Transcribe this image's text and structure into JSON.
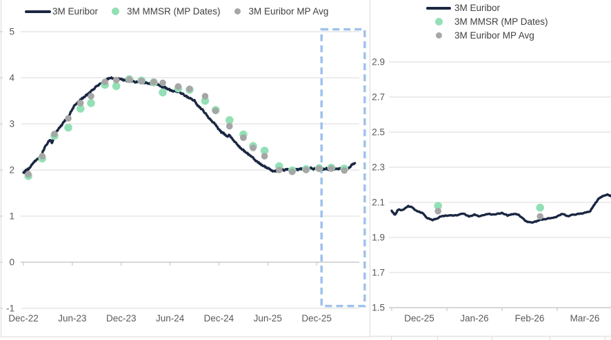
{
  "colors": {
    "euribor_line": "#1a2742",
    "mmsr_dot": "#93e0b6",
    "mp_avg_dot": "#a6a6a6",
    "gridline": "#d9d9d9",
    "axis_line": "#bfbfbf",
    "tick_label_text": "#595959",
    "legend_text": "#404040",
    "zoom_box": "#9fc2ec",
    "chart_border": "#d9d9d9"
  },
  "chart_data": [
    {
      "id": "left-chart",
      "type": "line",
      "title": "",
      "legend": [
        {
          "label": "3M Euribor",
          "marker": "line"
        },
        {
          "label": "3M MMSR (MP Dates)",
          "marker": "dot-green"
        },
        {
          "label": "3M Euribor MP Avg",
          "marker": "dot-gray"
        }
      ],
      "x_unit": "months since Dec-2022",
      "ylim": [
        -1,
        5
      ],
      "x_axis_at": 0,
      "y_gridlines": [
        5,
        4,
        3,
        2,
        1,
        -1
      ],
      "y_ticks": [
        {
          "label": "5",
          "value": 5
        },
        {
          "label": "4",
          "value": 4
        },
        {
          "label": "3",
          "value": 3
        },
        {
          "label": "2",
          "value": 2
        },
        {
          "label": "1",
          "value": 1
        },
        {
          "label": "0",
          "value": 0
        },
        {
          "label": "-1",
          "value": -1
        }
      ],
      "x_ticks": [
        {
          "label": "Dec-22",
          "month": 0
        },
        {
          "label": "Jun-23",
          "month": 6
        },
        {
          "label": "Dec-23",
          "month": 12
        },
        {
          "label": "Jun-24",
          "month": 18
        },
        {
          "label": "Dec-24",
          "month": 24
        },
        {
          "label": "Jun-25",
          "month": 30
        },
        {
          "label": "Dec-25",
          "month": 36
        }
      ],
      "x_axis_tick_months": [
        0,
        6,
        12,
        18,
        24,
        30,
        36
      ],
      "zoom_box": {
        "x_months": [
          36.6,
          41.9
        ],
        "y_values": [
          -0.95,
          5.05
        ]
      },
      "series": [
        {
          "name": "3M Euribor",
          "type": "line",
          "points": [
            [
              0,
              1.93
            ],
            [
              0.3,
              2.0
            ],
            [
              0.6,
              2.02
            ],
            [
              1,
              2.1
            ],
            [
              1.4,
              2.2
            ],
            [
              1.8,
              2.24
            ],
            [
              2.2,
              2.32
            ],
            [
              2.6,
              2.48
            ],
            [
              3,
              2.6
            ],
            [
              3.3,
              2.66
            ],
            [
              3.5,
              2.58
            ],
            [
              3.8,
              2.75
            ],
            [
              4.2,
              2.87
            ],
            [
              4.6,
              2.95
            ],
            [
              5,
              3.05
            ],
            [
              5.4,
              3.12
            ],
            [
              5.8,
              3.25
            ],
            [
              6.2,
              3.38
            ],
            [
              6.6,
              3.45
            ],
            [
              7,
              3.52
            ],
            [
              7.4,
              3.58
            ],
            [
              7.8,
              3.63
            ],
            [
              8.2,
              3.7
            ],
            [
              8.6,
              3.75
            ],
            [
              9,
              3.82
            ],
            [
              9.4,
              3.86
            ],
            [
              9.8,
              3.92
            ],
            [
              10.2,
              3.96
            ],
            [
              10.6,
              4.0
            ],
            [
              11,
              3.98
            ],
            [
              11.4,
              3.96
            ],
            [
              11.8,
              3.98
            ],
            [
              12.2,
              3.95
            ],
            [
              12.6,
              3.94
            ],
            [
              13,
              3.92
            ],
            [
              13.4,
              3.93
            ],
            [
              13.8,
              3.9
            ],
            [
              14.2,
              3.91
            ],
            [
              14.6,
              3.88
            ],
            [
              15,
              3.9
            ],
            [
              15.4,
              3.88
            ],
            [
              15.8,
              3.86
            ],
            [
              16.2,
              3.87
            ],
            [
              16.6,
              3.84
            ],
            [
              17,
              3.81
            ],
            [
              17.4,
              3.79
            ],
            [
              17.8,
              3.75
            ],
            [
              18.2,
              3.72
            ],
            [
              18.6,
              3.71
            ],
            [
              19,
              3.7
            ],
            [
              19.4,
              3.66
            ],
            [
              19.8,
              3.62
            ],
            [
              20.2,
              3.58
            ],
            [
              20.6,
              3.54
            ],
            [
              21,
              3.5
            ],
            [
              21.3,
              3.42
            ],
            [
              21.6,
              3.36
            ],
            [
              22,
              3.3
            ],
            [
              22.4,
              3.22
            ],
            [
              22.8,
              3.12
            ],
            [
              23.2,
              3.05
            ],
            [
              23.6,
              2.98
            ],
            [
              24,
              2.88
            ],
            [
              24.3,
              2.82
            ],
            [
              24.6,
              2.79
            ],
            [
              25,
              2.73
            ],
            [
              25.3,
              2.76
            ],
            [
              25.6,
              2.68
            ],
            [
              26,
              2.6
            ],
            [
              26.4,
              2.52
            ],
            [
              26.8,
              2.46
            ],
            [
              27.2,
              2.4
            ],
            [
              27.6,
              2.34
            ],
            [
              28,
              2.3
            ],
            [
              28.4,
              2.22
            ],
            [
              28.8,
              2.16
            ],
            [
              29.2,
              2.12
            ],
            [
              29.6,
              2.08
            ],
            [
              30,
              2.04
            ],
            [
              30.4,
              2.0
            ],
            [
              30.8,
              1.97
            ],
            [
              31.2,
              1.99
            ],
            [
              31.6,
              2.01
            ],
            [
              32,
              2.0
            ],
            [
              32.4,
              2.02
            ],
            [
              32.8,
              2.01
            ],
            [
              33.2,
              2.02
            ],
            [
              33.6,
              2.01
            ],
            [
              34,
              2.02
            ],
            [
              34.4,
              2.03
            ],
            [
              34.8,
              2.02
            ],
            [
              35.2,
              2.05
            ],
            [
              35.6,
              2.02
            ],
            [
              36,
              2.03
            ],
            [
              36.4,
              2.04
            ],
            [
              36.8,
              2.02
            ],
            [
              37.2,
              2.03
            ],
            [
              37.6,
              2.0
            ],
            [
              38,
              2.03
            ],
            [
              38.4,
              2.02
            ],
            [
              38.8,
              2.03
            ],
            [
              39.2,
              2.02
            ],
            [
              39.6,
              2.0
            ],
            [
              40,
              2.05
            ],
            [
              40.4,
              2.12
            ],
            [
              40.7,
              2.15
            ]
          ]
        },
        {
          "name": "3M MMSR (MP Dates)",
          "type": "scatter",
          "color": "green",
          "points": [
            [
              0.6,
              1.87
            ],
            [
              2.3,
              2.25
            ],
            [
              3.8,
              2.74
            ],
            [
              5.5,
              2.92
            ],
            [
              7.0,
              3.33
            ],
            [
              8.3,
              3.45
            ],
            [
              10.0,
              3.85
            ],
            [
              11.4,
              3.82
            ],
            [
              13.0,
              3.97
            ],
            [
              14.5,
              3.94
            ],
            [
              16.0,
              3.9
            ],
            [
              17.1,
              3.68
            ],
            [
              19.0,
              3.77
            ],
            [
              20.4,
              3.74
            ],
            [
              22.3,
              3.5
            ],
            [
              23.6,
              3.3
            ],
            [
              25.3,
              3.08
            ],
            [
              27.0,
              2.77
            ],
            [
              28.2,
              2.52
            ],
            [
              29.6,
              2.42
            ],
            [
              31.4,
              2.08
            ],
            [
              33.0,
              1.99
            ],
            [
              34.7,
              2.02
            ],
            [
              36.3,
              2.04
            ],
            [
              37.8,
              2.05
            ],
            [
              39.4,
              2.03
            ]
          ]
        },
        {
          "name": "3M Euribor MP Avg",
          "type": "scatter",
          "color": "gray",
          "points": [
            [
              0.6,
              1.91
            ],
            [
              2.3,
              2.3
            ],
            [
              3.8,
              2.78
            ],
            [
              5.5,
              3.12
            ],
            [
              7.0,
              3.45
            ],
            [
              8.3,
              3.6
            ],
            [
              10.0,
              3.91
            ],
            [
              11.4,
              3.95
            ],
            [
              13.0,
              3.96
            ],
            [
              14.5,
              3.93
            ],
            [
              16.0,
              3.91
            ],
            [
              17.1,
              3.89
            ],
            [
              19.0,
              3.81
            ],
            [
              20.4,
              3.76
            ],
            [
              22.3,
              3.6
            ],
            [
              23.6,
              3.28
            ],
            [
              25.3,
              2.95
            ],
            [
              27.0,
              2.7
            ],
            [
              28.2,
              2.48
            ],
            [
              29.6,
              2.3
            ],
            [
              31.4,
              2.0
            ],
            [
              33.0,
              1.96
            ],
            [
              34.7,
              2.0
            ],
            [
              36.3,
              2.03
            ],
            [
              37.8,
              2.03
            ],
            [
              39.4,
              1.99
            ]
          ]
        }
      ]
    },
    {
      "id": "right-chart",
      "type": "line",
      "title": "",
      "legend": [
        {
          "label": "3M Euribor",
          "marker": "line"
        },
        {
          "label": "3M MMSR (MP Dates)",
          "marker": "dot-green"
        },
        {
          "label": "3M Euribor MP Avg",
          "marker": "dot-gray"
        }
      ],
      "x_unit": "months since Dec-2025",
      "ylim": [
        1.5,
        2.9
      ],
      "x_axis_at": 1.5,
      "y_gridlines": [
        2.9,
        2.7,
        2.5,
        2.3,
        2.1,
        1.9,
        1.7
      ],
      "y_ticks": [
        {
          "label": "2.9",
          "value": 2.9
        },
        {
          "label": "2.7",
          "value": 2.7
        },
        {
          "label": "2.5",
          "value": 2.5
        },
        {
          "label": "2.3",
          "value": 2.3
        },
        {
          "label": "2.1",
          "value": 2.1
        },
        {
          "label": "1.9",
          "value": 1.9
        },
        {
          "label": "1.7",
          "value": 1.7
        },
        {
          "label": "1.5",
          "value": 1.5
        }
      ],
      "x_ticks": [
        {
          "label": "Dec-25",
          "month": 0.5
        },
        {
          "label": "Jan-26",
          "month": 1.5
        },
        {
          "label": "Feb-26",
          "month": 2.5
        },
        {
          "label": "Mar-26",
          "month": 3.5
        }
      ],
      "x_axis_tick_months": [
        0,
        1,
        2,
        3,
        4
      ],
      "series": [
        {
          "name": "3M Euribor",
          "type": "line",
          "points": [
            [
              0,
              2.05
            ],
            [
              0.06,
              2.03
            ],
            [
              0.12,
              2.06
            ],
            [
              0.2,
              2.055
            ],
            [
              0.3,
              2.08
            ],
            [
              0.38,
              2.07
            ],
            [
              0.45,
              2.05
            ],
            [
              0.55,
              2.04
            ],
            [
              0.65,
              2.01
            ],
            [
              0.74,
              2.0
            ],
            [
              0.8,
              2.005
            ],
            [
              0.9,
              2.02
            ],
            [
              1.0,
              2.025
            ],
            [
              1.15,
              2.025
            ],
            [
              1.3,
              2.035
            ],
            [
              1.4,
              2.02
            ],
            [
              1.5,
              2.03
            ],
            [
              1.6,
              2.02
            ],
            [
              1.75,
              2.035
            ],
            [
              1.85,
              2.03
            ],
            [
              2.0,
              2.04
            ],
            [
              2.1,
              2.025
            ],
            [
              2.2,
              2.035
            ],
            [
              2.3,
              2.03
            ],
            [
              2.42,
              1.995
            ],
            [
              2.5,
              1.985
            ],
            [
              2.6,
              1.99
            ],
            [
              2.68,
              2.0
            ],
            [
              2.78,
              2.005
            ],
            [
              2.9,
              2.01
            ],
            [
              3.0,
              2.02
            ],
            [
              3.1,
              2.035
            ],
            [
              3.18,
              2.02
            ],
            [
              3.3,
              2.03
            ],
            [
              3.4,
              2.035
            ],
            [
              3.5,
              2.04
            ],
            [
              3.6,
              2.05
            ],
            [
              3.68,
              2.09
            ],
            [
              3.75,
              2.12
            ],
            [
              3.82,
              2.135
            ],
            [
              3.9,
              2.145
            ],
            [
              3.95,
              2.14
            ],
            [
              4.0,
              2.135
            ]
          ]
        },
        {
          "name": "3M MMSR (MP Dates)",
          "type": "scatter",
          "color": "green",
          "points": [
            [
              0.84,
              2.08
            ],
            [
              2.69,
              2.07
            ]
          ]
        },
        {
          "name": "3M Euribor MP Avg",
          "type": "scatter",
          "color": "gray",
          "points": [
            [
              0.84,
              2.05
            ],
            [
              2.69,
              2.02
            ]
          ]
        }
      ]
    }
  ]
}
